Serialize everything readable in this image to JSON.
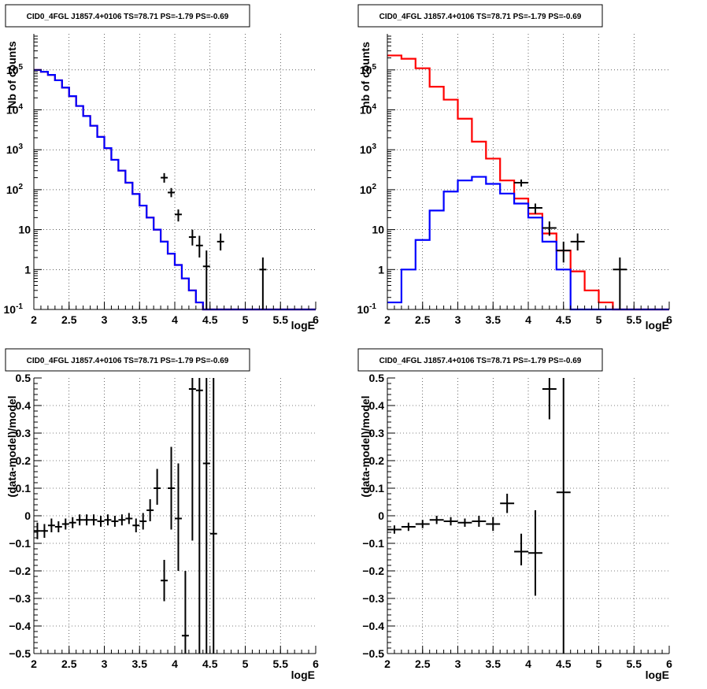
{
  "chart_data": [
    {
      "id": "p1",
      "type": "step",
      "title": "CID0_4FGL J1857.4+0106 TS=78.71 PS=-1.79 PS=-0.69",
      "xlabel": "logE",
      "ylabel": "Nb of counts",
      "xlim": [
        2,
        6
      ],
      "ylim": [
        0.1,
        800000
      ],
      "yscale": "log",
      "grid": true,
      "x_ticks": [
        "2",
        "2.5",
        "3",
        "3.5",
        "4",
        "4.5",
        "5",
        "5.5",
        "6"
      ],
      "y_ticks": [
        {
          "v": 0.1,
          "base": "10",
          "exp": "-1"
        },
        {
          "v": 1,
          "label": "1"
        },
        {
          "v": 10,
          "label": "10"
        },
        {
          "v": 100,
          "base": "10",
          "exp": "2"
        },
        {
          "v": 1000,
          "base": "10",
          "exp": "3"
        },
        {
          "v": 10000,
          "base": "10",
          "exp": "4"
        },
        {
          "v": 100000,
          "base": "10",
          "exp": "5"
        }
      ],
      "bin_edges": [
        2.0,
        2.1,
        2.2,
        2.3,
        2.4,
        2.5,
        2.6,
        2.7,
        2.8,
        2.9,
        3.0,
        3.1,
        3.2,
        3.3,
        3.4,
        3.5,
        3.6,
        3.7,
        3.8,
        3.9,
        4.0,
        4.1,
        4.2,
        4.3,
        4.4,
        4.5,
        4.6,
        4.7,
        4.8,
        4.9,
        5.0,
        5.1,
        5.2,
        5.3,
        5.4,
        5.5,
        5.6,
        5.7,
        5.8,
        5.9,
        6.0
      ],
      "series": [
        {
          "color": "#ff0000",
          "style": "step",
          "values": [
            100000,
            90000,
            75000,
            55000,
            36000,
            22000,
            12500,
            7000,
            4000,
            2100,
            1100,
            560,
            300,
            150,
            78,
            40,
            20,
            10,
            5,
            2.5,
            1.3,
            0.6,
            0.3,
            0.15,
            0.1,
            0.1,
            0.1,
            0.1,
            0.1,
            0.1,
            0.1,
            0.1,
            0.1,
            0.1,
            0.1,
            0.1,
            0.1,
            0.1,
            0.1,
            0.1
          ]
        },
        {
          "color": "#0000ff",
          "style": "step",
          "values": [
            100000,
            90000,
            75000,
            55000,
            36000,
            22000,
            12500,
            7000,
            4000,
            2100,
            1100,
            560,
            300,
            150,
            78,
            40,
            20,
            10,
            5,
            2.5,
            1.3,
            0.6,
            0.3,
            0.15,
            0.1,
            0.1,
            0.1,
            0.1,
            0.1,
            0.1,
            0.1,
            0.1,
            0.1,
            0.1,
            0.1,
            0.1,
            0.1,
            0.1,
            0.1,
            0.1
          ]
        },
        {
          "color": "#000000",
          "style": "points",
          "points": [
            [
              3.85,
              200,
              150,
              260
            ],
            [
              3.95,
              85,
              65,
              110
            ],
            [
              4.05,
              24,
              16,
              32
            ],
            [
              4.25,
              6.5,
              4,
              10
            ],
            [
              4.35,
              4,
              2,
              7
            ],
            [
              4.45,
              1.2,
              0.1,
              3
            ],
            [
              4.65,
              5,
              3,
              8
            ],
            [
              5.25,
              1,
              0.1,
              2
            ]
          ]
        }
      ]
    },
    {
      "id": "p2",
      "type": "step",
      "title": "CID0_4FGL J1857.4+0106 TS=78.71 PS=-1.79 PS=-0.69",
      "xlabel": "logE",
      "ylabel": "nb of counts",
      "xlim": [
        2,
        6
      ],
      "ylim": [
        0.1,
        800000
      ],
      "yscale": "log",
      "grid": true,
      "x_ticks": [
        "2",
        "2.5",
        "3",
        "3.5",
        "4",
        "4.5",
        "5",
        "5.5",
        "6"
      ],
      "y_ticks": [
        {
          "v": 0.1,
          "base": "10",
          "exp": "-1"
        },
        {
          "v": 1,
          "label": "1"
        },
        {
          "v": 10,
          "label": "10"
        },
        {
          "v": 100,
          "base": "10",
          "exp": "2"
        },
        {
          "v": 1000,
          "base": "10",
          "exp": "3"
        },
        {
          "v": 10000,
          "base": "10",
          "exp": "4"
        },
        {
          "v": 100000,
          "base": "10",
          "exp": "5"
        }
      ],
      "bin_edges": [
        2.0,
        2.2,
        2.4,
        2.6,
        2.8,
        3.0,
        3.2,
        3.4,
        3.6,
        3.8,
        4.0,
        4.2,
        4.4,
        4.6,
        4.8,
        5.0,
        5.2,
        5.4,
        5.6,
        5.8,
        6.0
      ],
      "series": [
        {
          "color": "#ff0000",
          "style": "step",
          "values": [
            230000,
            190000,
            110000,
            38000,
            18000,
            6000,
            1600,
            600,
            170,
            60,
            25,
            8,
            3,
            0.9,
            0.3,
            0.15,
            0.1,
            0.1,
            0.1,
            0.1
          ]
        },
        {
          "color": "#0000ff",
          "style": "step",
          "values": [
            0.15,
            1,
            5.5,
            30,
            90,
            170,
            210,
            140,
            80,
            45,
            20,
            5,
            1,
            0.1,
            0.1,
            0.1,
            0.1,
            0.1,
            0.1,
            0.1
          ]
        },
        {
          "color": "#000000",
          "style": "points",
          "points": [
            [
              3.9,
              150,
              120,
              180
            ],
            [
              4.1,
              35,
              25,
              45
            ],
            [
              4.3,
              11,
              7,
              16
            ],
            [
              4.5,
              3,
              1.5,
              5
            ],
            [
              4.7,
              5,
              3,
              8
            ],
            [
              5.3,
              1,
              0.1,
              2
            ]
          ]
        }
      ]
    },
    {
      "id": "p3",
      "type": "scatter",
      "title": "CID0_4FGL J1857.4+0106 TS=78.71 PS=-1.79 PS=-0.69",
      "xlabel": "logE",
      "ylabel": "(data-model)/model",
      "xlim": [
        2,
        6
      ],
      "ylim": [
        -0.5,
        0.5
      ],
      "grid": true,
      "x_ticks": [
        "2",
        "2.5",
        "3",
        "3.5",
        "4",
        "4.5",
        "5",
        "5.5",
        "6"
      ],
      "y_ticks": [
        {
          "v": -0.5,
          "label": "−0.5"
        },
        {
          "v": -0.4,
          "label": "−0.4"
        },
        {
          "v": -0.3,
          "label": "−0.3"
        },
        {
          "v": -0.2,
          "label": "−0.2"
        },
        {
          "v": -0.1,
          "label": "−0.1"
        },
        {
          "v": 0,
          "label": "0"
        },
        {
          "v": 0.1,
          "label": "0.1"
        },
        {
          "v": 0.2,
          "label": "0.2"
        },
        {
          "v": 0.3,
          "label": "0.3"
        },
        {
          "v": 0.4,
          "label": "0.4"
        },
        {
          "v": 0.5,
          "label": "0.5"
        }
      ],
      "series": [
        {
          "color": "#000000",
          "style": "points",
          "half_width": 0.05,
          "points": [
            [
              2.05,
              -0.055,
              -0.085,
              -0.025
            ],
            [
              2.15,
              -0.055,
              -0.08,
              -0.03
            ],
            [
              2.25,
              -0.035,
              -0.06,
              -0.01
            ],
            [
              2.35,
              -0.04,
              -0.06,
              -0.02
            ],
            [
              2.45,
              -0.03,
              -0.05,
              -0.01
            ],
            [
              2.55,
              -0.025,
              -0.045,
              -0.005
            ],
            [
              2.65,
              -0.015,
              -0.035,
              0.005
            ],
            [
              2.75,
              -0.015,
              -0.035,
              0.005
            ],
            [
              2.85,
              -0.015,
              -0.035,
              0.005
            ],
            [
              2.95,
              -0.02,
              -0.04,
              0.0
            ],
            [
              3.05,
              -0.015,
              -0.035,
              0.005
            ],
            [
              3.15,
              -0.02,
              -0.04,
              0.0
            ],
            [
              3.25,
              -0.015,
              -0.035,
              0.005
            ],
            [
              3.35,
              -0.01,
              -0.03,
              0.01
            ],
            [
              3.45,
              -0.035,
              -0.06,
              -0.01
            ],
            [
              3.55,
              -0.02,
              -0.05,
              0.01
            ],
            [
              3.65,
              0.02,
              -0.02,
              0.06
            ],
            [
              3.75,
              0.1,
              0.04,
              0.17
            ],
            [
              3.85,
              -0.235,
              -0.31,
              -0.16
            ],
            [
              3.95,
              0.1,
              -0.05,
              0.25
            ],
            [
              4.05,
              -0.01,
              -0.2,
              0.19
            ],
            [
              4.15,
              -0.435,
              -0.5,
              -0.2
            ],
            [
              4.25,
              0.46,
              -0.09,
              0.5
            ],
            [
              4.35,
              0.455,
              -0.5,
              0.5
            ],
            [
              4.45,
              0.19,
              -0.5,
              0.5
            ],
            [
              4.55,
              -0.065,
              -0.5,
              0.5
            ]
          ]
        }
      ]
    },
    {
      "id": "p4",
      "type": "scatter",
      "title": "CID0_4FGL J1857.4+0106 TS=78.71 PS=-1.79 PS=-0.69",
      "xlabel": "logE",
      "ylabel": "(data-model)/model",
      "xlim": [
        2,
        6
      ],
      "ylim": [
        -0.5,
        0.5
      ],
      "grid": true,
      "x_ticks": [
        "2",
        "2.5",
        "3",
        "3.5",
        "4",
        "4.5",
        "5",
        "5.5",
        "6"
      ],
      "y_ticks": [
        {
          "v": -0.5,
          "label": "−0.5"
        },
        {
          "v": -0.4,
          "label": "−0.4"
        },
        {
          "v": -0.3,
          "label": "−0.3"
        },
        {
          "v": -0.2,
          "label": "−0.2"
        },
        {
          "v": -0.1,
          "label": "−0.1"
        },
        {
          "v": 0,
          "label": "0"
        },
        {
          "v": 0.1,
          "label": "0.1"
        },
        {
          "v": 0.2,
          "label": "0.2"
        },
        {
          "v": 0.3,
          "label": "0.3"
        },
        {
          "v": 0.4,
          "label": "0.4"
        },
        {
          "v": 0.5,
          "label": "0.5"
        }
      ],
      "series": [
        {
          "color": "#000000",
          "style": "points",
          "half_width": 0.1,
          "points": [
            [
              2.1,
              -0.05,
              -0.065,
              -0.035
            ],
            [
              2.3,
              -0.04,
              -0.055,
              -0.025
            ],
            [
              2.5,
              -0.03,
              -0.045,
              -0.015
            ],
            [
              2.7,
              -0.015,
              -0.03,
              0.0
            ],
            [
              2.9,
              -0.02,
              -0.035,
              -0.005
            ],
            [
              3.1,
              -0.025,
              -0.04,
              -0.01
            ],
            [
              3.3,
              -0.02,
              -0.04,
              0.0
            ],
            [
              3.5,
              -0.03,
              -0.055,
              -0.005
            ],
            [
              3.7,
              0.045,
              0.01,
              0.08
            ],
            [
              3.9,
              -0.13,
              -0.18,
              -0.065
            ],
            [
              4.1,
              -0.135,
              -0.29,
              0.02
            ],
            [
              4.3,
              0.46,
              0.35,
              0.5
            ],
            [
              4.5,
              0.085,
              -0.5,
              0.5
            ]
          ]
        }
      ]
    }
  ]
}
